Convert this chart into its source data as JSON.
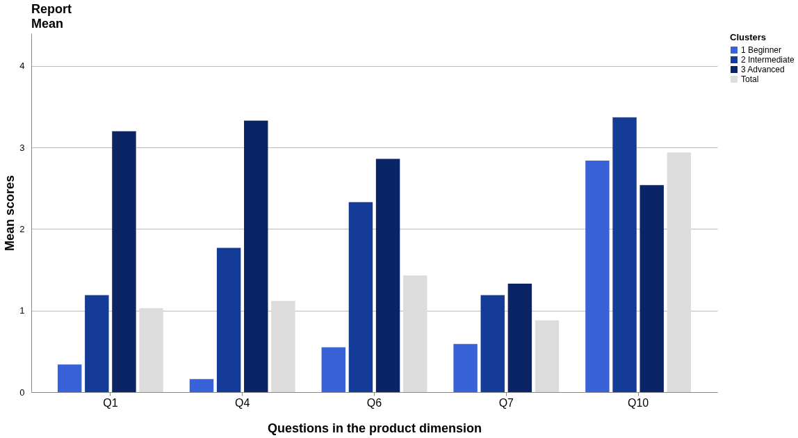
{
  "chart_data": {
    "type": "bar",
    "title": "Report",
    "subtitle": "Mean",
    "xlabel": "Questions in the product dimension",
    "ylabel": "Mean scores",
    "legend_title": "Clusters",
    "categories": [
      "Q1",
      "Q4",
      "Q6",
      "Q7",
      "Q10"
    ],
    "series": [
      {
        "name": "1 Beginner",
        "color": "#3a62d8",
        "values": [
          0.34,
          0.16,
          0.55,
          0.59,
          2.84
        ]
      },
      {
        "name": "2 Intermediate",
        "color": "#143c96",
        "values": [
          1.19,
          1.77,
          2.33,
          1.19,
          3.37
        ]
      },
      {
        "name": "3 Advanced",
        "color": "#0b2466",
        "values": [
          3.2,
          3.33,
          2.86,
          1.33,
          2.54
        ]
      },
      {
        "name": "Total",
        "color": "#dcdcdc",
        "values": [
          1.03,
          1.12,
          1.43,
          0.88,
          2.94
        ]
      }
    ],
    "ylim": [
      0,
      4.4
    ],
    "yticks": [
      0,
      1,
      2,
      3,
      4
    ],
    "grid": "y",
    "legend": "top right"
  }
}
